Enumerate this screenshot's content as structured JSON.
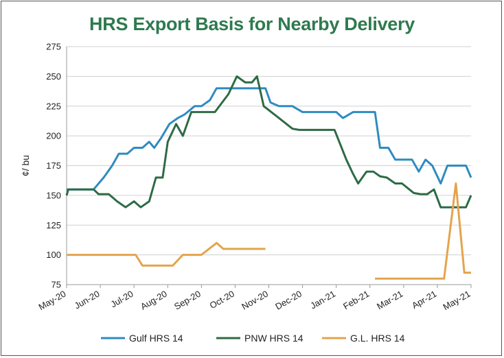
{
  "chart_data": {
    "type": "line",
    "title": "HRS Export Basis for Nearby Delivery",
    "xlabel": "",
    "ylabel": "¢/ bu",
    "ylim": [
      75,
      275
    ],
    "yticks": [
      75,
      100,
      125,
      150,
      175,
      200,
      225,
      250,
      275
    ],
    "x_range": [
      0,
      12
    ],
    "x_ticks": [
      {
        "x": 0,
        "label": "May-20"
      },
      {
        "x": 1,
        "label": "Jun-20"
      },
      {
        "x": 2,
        "label": "Jul-20"
      },
      {
        "x": 3,
        "label": "Aug-20"
      },
      {
        "x": 4,
        "label": "Sep-20"
      },
      {
        "x": 5,
        "label": "Oct-20"
      },
      {
        "x": 6,
        "label": "Nov-20"
      },
      {
        "x": 7,
        "label": "Dec-20"
      },
      {
        "x": 8,
        "label": "Jan-21"
      },
      {
        "x": 9,
        "label": "Feb-21"
      },
      {
        "x": 10,
        "label": "Mar-21"
      },
      {
        "x": 11,
        "label": "Apr-21"
      },
      {
        "x": 12,
        "label": "May-21"
      }
    ],
    "grid": "horizontal",
    "legend": "bottom",
    "series": [
      {
        "name": "Gulf HRS 14",
        "color": "#2e8bc0",
        "points": [
          [
            0,
            155
          ],
          [
            0.8,
            155
          ],
          [
            1.1,
            165
          ],
          [
            1.35,
            175
          ],
          [
            1.55,
            185
          ],
          [
            1.8,
            185
          ],
          [
            2.0,
            190
          ],
          [
            2.25,
            190
          ],
          [
            2.45,
            195
          ],
          [
            2.6,
            190
          ],
          [
            2.8,
            198
          ],
          [
            3.05,
            210
          ],
          [
            3.3,
            215
          ],
          [
            3.5,
            218
          ],
          [
            3.8,
            225
          ],
          [
            4.0,
            225
          ],
          [
            4.25,
            230
          ],
          [
            4.45,
            240
          ],
          [
            4.75,
            240
          ],
          [
            5.0,
            240
          ],
          [
            5.25,
            240
          ],
          [
            5.5,
            240
          ],
          [
            5.75,
            240
          ],
          [
            5.9,
            240
          ],
          [
            6.05,
            228
          ],
          [
            6.3,
            225
          ],
          [
            6.7,
            225
          ],
          [
            7.0,
            220
          ],
          [
            7.5,
            220
          ],
          [
            7.75,
            220
          ],
          [
            8.0,
            220
          ],
          [
            8.2,
            215
          ],
          [
            8.5,
            220
          ],
          [
            9.0,
            220
          ],
          [
            9.15,
            220
          ],
          [
            9.3,
            190
          ],
          [
            9.55,
            190
          ],
          [
            9.75,
            180
          ],
          [
            10.0,
            180
          ],
          [
            10.25,
            180
          ],
          [
            10.45,
            170
          ],
          [
            10.65,
            180
          ],
          [
            10.85,
            175
          ],
          [
            11.1,
            160
          ],
          [
            11.3,
            175
          ],
          [
            11.6,
            175
          ],
          [
            11.85,
            175
          ],
          [
            12.0,
            165
          ]
        ]
      },
      {
        "name": "PNW HRS 14",
        "color": "#2d6b45",
        "points": [
          [
            0,
            150
          ],
          [
            0.05,
            155
          ],
          [
            0.6,
            155
          ],
          [
            0.8,
            155
          ],
          [
            0.95,
            151
          ],
          [
            1.25,
            151
          ],
          [
            1.5,
            145
          ],
          [
            1.75,
            140
          ],
          [
            2.0,
            145
          ],
          [
            2.2,
            140
          ],
          [
            2.45,
            145
          ],
          [
            2.65,
            165
          ],
          [
            2.85,
            165
          ],
          [
            3.0,
            195
          ],
          [
            3.25,
            210
          ],
          [
            3.45,
            200
          ],
          [
            3.7,
            220
          ],
          [
            4.0,
            220
          ],
          [
            4.4,
            220
          ],
          [
            4.8,
            235
          ],
          [
            5.05,
            250
          ],
          [
            5.3,
            245
          ],
          [
            5.5,
            245
          ],
          [
            5.65,
            250
          ],
          [
            5.85,
            225
          ],
          [
            6.3,
            215
          ],
          [
            6.7,
            206
          ],
          [
            6.9,
            205
          ],
          [
            7.5,
            205
          ],
          [
            7.8,
            205
          ],
          [
            7.95,
            205
          ],
          [
            8.3,
            180
          ],
          [
            8.5,
            168
          ],
          [
            8.65,
            160
          ],
          [
            8.9,
            170
          ],
          [
            9.1,
            170
          ],
          [
            9.3,
            166
          ],
          [
            9.5,
            165
          ],
          [
            9.75,
            160
          ],
          [
            9.95,
            160
          ],
          [
            10.3,
            152
          ],
          [
            10.5,
            151
          ],
          [
            10.7,
            151
          ],
          [
            10.9,
            155
          ],
          [
            11.1,
            140
          ],
          [
            11.4,
            140
          ],
          [
            11.75,
            140
          ],
          [
            11.85,
            140
          ],
          [
            12.0,
            150
          ]
        ]
      },
      {
        "name": "G.L. HRS 14",
        "color": "#e3a44c",
        "segments": [
          [
            [
              0,
              100
            ],
            [
              1.5,
              100
            ],
            [
              2.05,
              100
            ],
            [
              2.25,
              91
            ],
            [
              3.15,
              91
            ],
            [
              3.45,
              100
            ],
            [
              4.0,
              100
            ],
            [
              4.45,
              110
            ],
            [
              4.65,
              105
            ],
            [
              5.2,
              105
            ],
            [
              5.9,
              105
            ]
          ],
          [
            [
              9.15,
              80
            ],
            [
              10.2,
              80
            ],
            [
              11.0,
              80
            ],
            [
              11.2,
              80
            ],
            [
              11.55,
              160
            ],
            [
              11.8,
              85
            ],
            [
              12.0,
              85
            ]
          ]
        ]
      }
    ]
  }
}
